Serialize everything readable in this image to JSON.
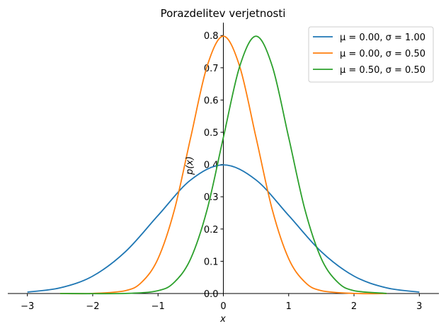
{
  "chart_data": {
    "type": "line",
    "title": "Porazdelitev verjetnosti",
    "xlabel": "x",
    "ylabel": "p(x)",
    "xlim": [
      -3.3,
      3.3
    ],
    "ylim": [
      0,
      0.84
    ],
    "xticks": [
      -3,
      -2,
      -1,
      0,
      1,
      2,
      3
    ],
    "xtick_labels": [
      "−3",
      "−2",
      "−1",
      "0",
      "1",
      "2",
      "3"
    ],
    "yticks": [
      0.0,
      0.1,
      0.2,
      0.3,
      0.4,
      0.5,
      0.6,
      0.7,
      0.8
    ],
    "ytick_labels": [
      "0.0",
      "0.1",
      "0.2",
      "0.3",
      "0.4",
      "0.5",
      "0.6",
      "0.7",
      "0.8"
    ],
    "grid": false,
    "legend_position": "top-right",
    "series": [
      {
        "name": "μ = 0.00, σ = 1.00",
        "color": "#1f77b4",
        "x": [
          -3.0,
          -2.5,
          -2.0,
          -1.5,
          -1.0,
          -0.5,
          0.0,
          0.5,
          1.0,
          1.5,
          2.0,
          2.5,
          3.0
        ],
        "y": [
          0.0044,
          0.0175,
          0.054,
          0.1295,
          0.242,
          0.3521,
          0.3989,
          0.3521,
          0.242,
          0.1295,
          0.054,
          0.0175,
          0.0044
        ]
      },
      {
        "name": "μ = 0.00, σ = 0.50",
        "color": "#ff7f0e",
        "x": [
          -2.5,
          -2.0,
          -1.5,
          -1.25,
          -1.0,
          -0.75,
          -0.5,
          -0.25,
          0.0,
          0.25,
          0.5,
          0.75,
          1.0,
          1.25,
          1.5,
          2.0,
          2.5
        ],
        "y": [
          0.0,
          0.0003,
          0.0089,
          0.035,
          0.108,
          0.259,
          0.4839,
          0.7041,
          0.7979,
          0.7041,
          0.4839,
          0.259,
          0.108,
          0.035,
          0.0089,
          0.0003,
          0.0
        ]
      },
      {
        "name": "μ = 0.50, σ = 0.50",
        "color": "#2ca02c",
        "x": [
          -2.5,
          -1.5,
          -1.0,
          -0.75,
          -0.5,
          -0.25,
          0.0,
          0.25,
          0.5,
          0.75,
          1.0,
          1.25,
          1.5,
          1.75,
          2.0,
          2.5
        ],
        "y": [
          0.0,
          0.0003,
          0.0089,
          0.035,
          0.108,
          0.259,
          0.4839,
          0.7041,
          0.7979,
          0.7041,
          0.4839,
          0.259,
          0.108,
          0.035,
          0.0089,
          0.0003
        ]
      }
    ]
  }
}
